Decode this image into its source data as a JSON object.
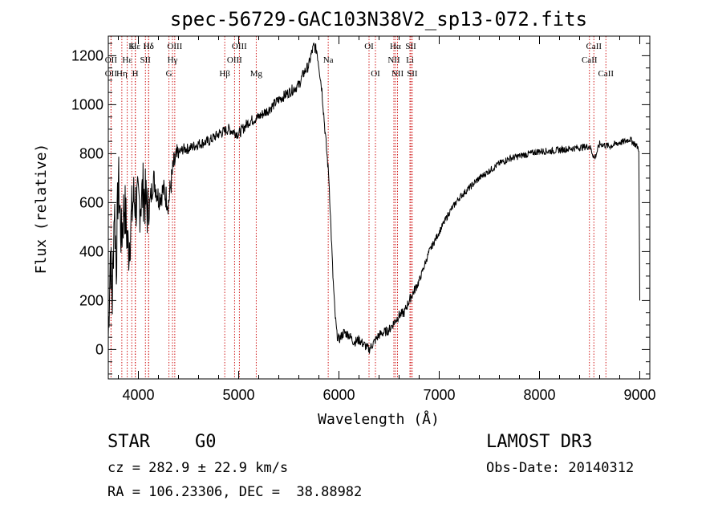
{
  "chart_data": {
    "type": "line",
    "title": "spec-56729-GAC103N38V2_sp13-072.fits",
    "xlabel": "Wavelength (Å)",
    "ylabel": "Flux (relative)",
    "xlim": [
      3700,
      9100
    ],
    "ylim": [
      -120,
      1280
    ],
    "xticks": [
      4000,
      5000,
      6000,
      7000,
      8000,
      9000
    ],
    "yticks": [
      0,
      200,
      400,
      600,
      800,
      1000,
      1200
    ],
    "series": [
      {
        "name": "flux",
        "x": [
          3700,
          3720,
          3740,
          3760,
          3780,
          3800,
          3830,
          3860,
          3900,
          3950,
          4000,
          4050,
          4100,
          4150,
          4200,
          4250,
          4300,
          4350,
          4400,
          4450,
          4500,
          4600,
          4700,
          4800,
          4900,
          5000,
          5100,
          5200,
          5300,
          5400,
          5500,
          5600,
          5650,
          5700,
          5720,
          5750,
          5780,
          5800,
          5830,
          5860,
          5900,
          5920,
          5940,
          5960,
          5980,
          6000,
          6050,
          6100,
          6150,
          6200,
          6250,
          6300,
          6350,
          6400,
          6450,
          6500,
          6550,
          6600,
          6650,
          6700,
          6750,
          6800,
          6850,
          6900,
          6950,
          7000,
          7050,
          7100,
          7200,
          7300,
          7400,
          7500,
          7600,
          7700,
          7800,
          7900,
          8000,
          8100,
          8200,
          8300,
          8400,
          8500,
          8550,
          8600,
          8700,
          8800,
          8850,
          8900,
          8950,
          8990,
          9000
        ],
        "y": [
          50,
          400,
          200,
          600,
          350,
          700,
          450,
          600,
          400,
          620,
          580,
          650,
          550,
          700,
          620,
          650,
          600,
          750,
          800,
          820,
          820,
          840,
          850,
          880,
          900,
          880,
          930,
          950,
          980,
          1020,
          1050,
          1080,
          1130,
          1160,
          1200,
          1240,
          1220,
          1160,
          1060,
          900,
          700,
          500,
          300,
          150,
          60,
          40,
          70,
          60,
          30,
          40,
          20,
          0,
          30,
          60,
          70,
          80,
          110,
          140,
          150,
          200,
          240,
          280,
          340,
          400,
          440,
          480,
          520,
          560,
          620,
          660,
          700,
          730,
          760,
          780,
          790,
          800,
          810,
          810,
          815,
          820,
          825,
          830,
          780,
          840,
          830,
          845,
          850,
          860,
          840,
          820,
          200
        ]
      }
    ],
    "lines": [
      {
        "name": "Hε",
        "x": 3970,
        "row": 1
      },
      {
        "name": "Hδ",
        "x": 4102,
        "row": 1
      },
      {
        "name": "K",
        "x": 3934,
        "row": 1
      },
      {
        "name": "Hδ",
        "x": 4102,
        "row": 1
      },
      {
        "name": "OII",
        "x": 3727,
        "row": 2
      },
      {
        "name": "Hε",
        "x": 3889,
        "row": 2
      },
      {
        "name": "SII",
        "x": 4070,
        "row": 2
      },
      {
        "name": "OII",
        "x": 3727,
        "row": 3
      },
      {
        "name": "Hη",
        "x": 3835,
        "row": 3
      },
      {
        "name": "H",
        "x": 3969,
        "row": 3
      },
      {
        "name": "OIII",
        "x": 4363,
        "row": 1
      },
      {
        "name": "Hγ",
        "x": 4340,
        "row": 2
      },
      {
        "name": "G",
        "x": 4305,
        "row": 3
      },
      {
        "name": "Hβ",
        "x": 4861,
        "row": 3
      },
      {
        "name": "OIII",
        "x": 5007,
        "row": 1
      },
      {
        "name": "OIII",
        "x": 4959,
        "row": 2
      },
      {
        "name": "Mg",
        "x": 5175,
        "row": 3
      },
      {
        "name": "Na",
        "x": 5893,
        "row": 2
      },
      {
        "name": "OI",
        "x": 6300,
        "row": 1
      },
      {
        "name": "OI",
        "x": 6364,
        "row": 3
      },
      {
        "name": "Hα",
        "x": 6563,
        "row": 1
      },
      {
        "name": "SII",
        "x": 6717,
        "row": 1
      },
      {
        "name": "NII",
        "x": 6548,
        "row": 2
      },
      {
        "name": "Li",
        "x": 6708,
        "row": 2
      },
      {
        "name": "NII",
        "x": 6584,
        "row": 3
      },
      {
        "name": "SII",
        "x": 6731,
        "row": 3
      },
      {
        "name": "CaII",
        "x": 8542,
        "row": 1
      },
      {
        "name": "CaII",
        "x": 8498,
        "row": 2
      },
      {
        "name": "CaII",
        "x": 8662,
        "row": 3
      }
    ]
  },
  "footer": {
    "object_class": "STAR",
    "subclass": "G0",
    "cz": "cz = 282.9 ± 22.9 km/s",
    "coords": "RA = 106.23306, DEC =  38.88982",
    "survey": "LAMOST DR3",
    "obs_date": "Obs-Date: 20140312"
  },
  "colors": {
    "line_marker": "#cc0000",
    "spectrum": "#000000",
    "axes": "#000000"
  }
}
